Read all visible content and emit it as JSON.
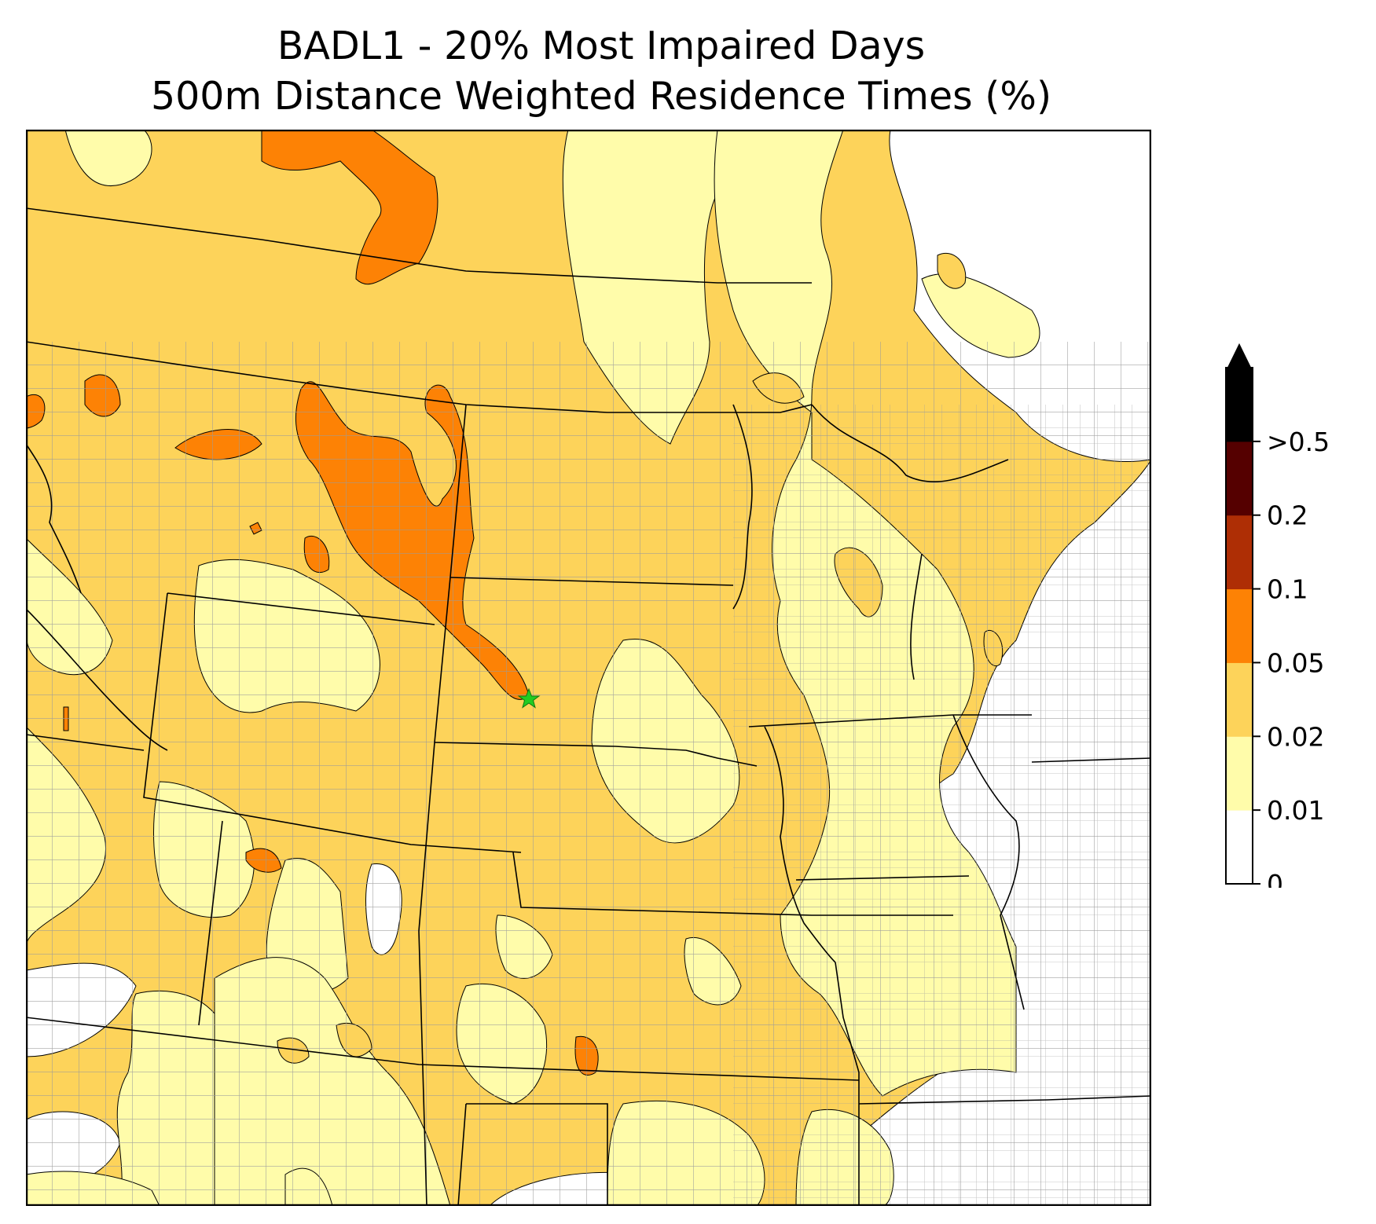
{
  "title": {
    "line1": "BADL1 - 20% Most Impaired Days",
    "line2": "500m Distance Weighted Residence Times (%)"
  },
  "map": {
    "site_marker": "green-star-icon",
    "site_color": "#22cc22",
    "boundary_color": "#000000",
    "county_color": "#9a9a9a"
  },
  "colorbar": {
    "ticks": [
      "0",
      "0.01",
      "0.02",
      "0.05",
      "0.1",
      "0.2",
      ">0.5"
    ],
    "bins": [
      {
        "range": "0 - 0.01",
        "color": "#ffffff"
      },
      {
        "range": "0.01 - 0.02",
        "color": "#fffcaa"
      },
      {
        "range": "0.02 - 0.05",
        "color": "#fdd35a"
      },
      {
        "range": "0.05 - 0.1",
        "color": "#fd8205"
      },
      {
        "range": "0.1 - 0.2",
        "color": "#ae2e05"
      },
      {
        "range": "0.2 - 0.5",
        "color": "#550000"
      },
      {
        "range": ">0.5",
        "color": "#000000"
      }
    ],
    "extend": "max"
  }
}
